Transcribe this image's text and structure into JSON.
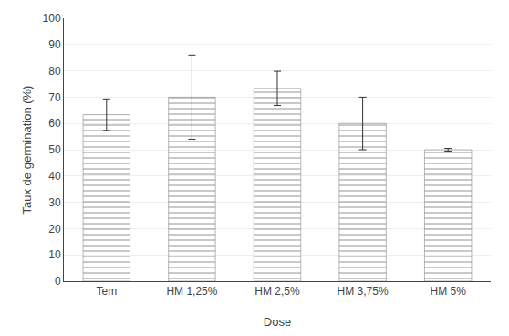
{
  "chart_data": {
    "type": "bar",
    "categories": [
      "Tem",
      "HM 1,25%",
      "HM 2,5%",
      "HM 3,75%",
      "HM 5%"
    ],
    "values": [
      63.33,
      70.0,
      73.33,
      60.0,
      50.0
    ],
    "errors": [
      6.0,
      16.0,
      6.5,
      10.0,
      0.5
    ],
    "color": "#c8c8c8",
    "xlabel": "Dose",
    "ylabel": "Taux de germination (%)",
    "ylim": [
      0,
      100
    ],
    "yticks": [
      0,
      10,
      20,
      30,
      40,
      50,
      60,
      70,
      80,
      90,
      100
    ],
    "grid": true
  }
}
